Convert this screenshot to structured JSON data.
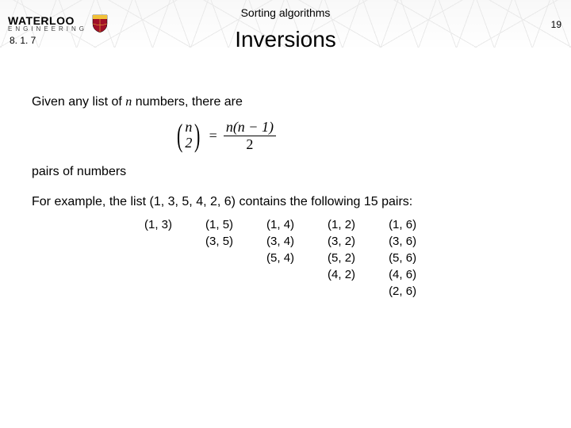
{
  "header": {
    "brand_top": "WATERLOO",
    "brand_bottom": "ENGINEERING",
    "chapter_title": "Sorting algorithms",
    "slide_title": "Inversions",
    "section_number": "8. 1. 7",
    "page_number": "19",
    "brand_color": "#000000",
    "shield_fill": "#a01028",
    "shield_accent": "#f2c138"
  },
  "body": {
    "line1_prefix": "Given any list of ",
    "line1_var": "n",
    "line1_suffix": " numbers, there are",
    "formula": {
      "binom_top": "n",
      "binom_bottom": "2",
      "equals": "=",
      "frac_num": "n(n − 1)",
      "frac_den": "2"
    },
    "line2": "pairs of numbers",
    "line3": "For example, the list  (1, 3, 5, 4, 2, 6) contains the following 15 pairs:",
    "pairs": [
      [
        "(1, 3)",
        "(1, 5)",
        "(1, 4)",
        "(1, 2)",
        "(1, 6)"
      ],
      [
        "",
        "(3, 5)",
        "(3, 4)",
        "(3, 2)",
        "(3, 6)"
      ],
      [
        "",
        "",
        "(5, 4)",
        "(5, 2)",
        "(5, 6)"
      ],
      [
        "",
        "",
        "",
        "(4, 2)",
        "(4, 6)"
      ],
      [
        "",
        "",
        "",
        "",
        "(2, 6)"
      ]
    ]
  }
}
